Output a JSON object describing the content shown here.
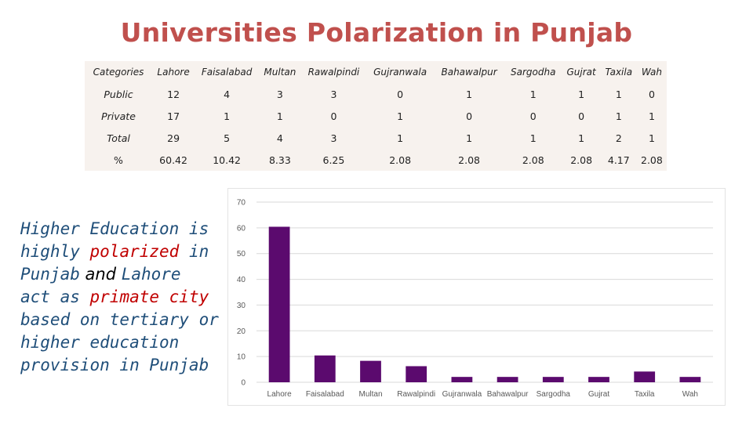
{
  "title": "Universities Polarization in Punjab",
  "table": {
    "header": [
      "Categories",
      "Lahore",
      "Faisalabad",
      "Multan",
      "Rawalpindi",
      "Gujranwala",
      "Bahawalpur",
      "Sargodha",
      "Gujrat",
      "Taxila",
      "Wah"
    ],
    "rows": [
      {
        "label": "Public",
        "cells": [
          "12",
          "4",
          "3",
          "3",
          "0",
          "1",
          "1",
          "1",
          "1",
          "0"
        ]
      },
      {
        "label": "Private",
        "cells": [
          "17",
          "1",
          "1",
          "0",
          "1",
          "0",
          "0",
          "0",
          "1",
          "1"
        ]
      },
      {
        "label": "Total",
        "cells": [
          "29",
          "5",
          "4",
          "3",
          "1",
          "1",
          "1",
          "1",
          "2",
          "1"
        ]
      },
      {
        "label": "%",
        "cells": [
          "60.42",
          "10.42",
          "8.33",
          "6.25",
          "2.08",
          "2.08",
          "2.08",
          "2.08",
          "4.17",
          "2.08"
        ]
      }
    ]
  },
  "side_text": {
    "line1": "Higher Education is",
    "line2a": "highly ",
    "line2b": "polarized",
    "line2c": " in",
    "line3a": "Punjab",
    "line3b": " and ",
    "line3c": "Lahore",
    "line4a": "act as ",
    "line4b": "primate city",
    "line5": "based on tertiary or",
    "line6": "higher education",
    "line7": "provision in Punjab"
  },
  "chart_data": {
    "type": "bar",
    "categories": [
      "Lahore",
      "Faisalabad",
      "Multan",
      "Rawalpindi",
      "Gujranwala",
      "Bahawalpur",
      "Sargodha",
      "Gujrat",
      "Taxila",
      "Wah"
    ],
    "values": [
      60.42,
      10.42,
      8.33,
      6.25,
      2.08,
      2.08,
      2.08,
      2.08,
      4.17,
      2.08
    ],
    "ylim": [
      0,
      70
    ],
    "yticks": [
      0,
      10,
      20,
      30,
      40,
      50,
      60,
      70
    ],
    "grid": true,
    "bar_color": "#5b0a6e",
    "grid_color": "#d9d9d9",
    "title": "",
    "xlabel": "",
    "ylabel": ""
  },
  "colors": {
    "title": "#c0504d",
    "table_bg": "#f7f2ee",
    "side_blue": "#1f4e79",
    "side_red": "#c00000"
  }
}
